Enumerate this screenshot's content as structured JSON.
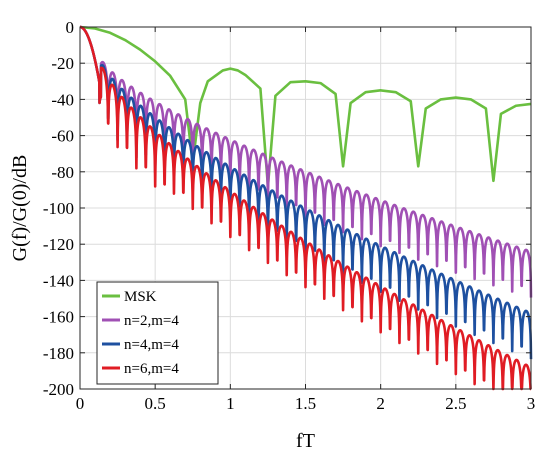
{
  "chart_data": {
    "type": "line",
    "title": "",
    "xlabel": "fT",
    "ylabel": "G(f)/G(0)/dB",
    "xlim": [
      0,
      3
    ],
    "ylim": [
      -200,
      0
    ],
    "xticks": [
      0,
      0.5,
      1,
      1.5,
      2,
      2.5,
      3
    ],
    "xtick_labels": [
      "0",
      "0.5",
      "1",
      "1.5",
      "2",
      "2.5",
      "3"
    ],
    "yticks": [
      0,
      -20,
      -40,
      -60,
      -80,
      -100,
      -120,
      -140,
      -160,
      -180,
      -200
    ],
    "ytick_labels": [
      "0",
      "-20",
      "-40",
      "-60",
      "-80",
      "-100",
      "-120",
      "-140",
      "-160",
      "-180",
      "-200"
    ],
    "grid": true,
    "legend_position": "bottom-left",
    "series": [
      {
        "name": "MSK",
        "color": "#6abf40",
        "description": "main lobe to first null near fT=0.75, sidelobe peaks about -23 dB, nulls at 1.25, 1.75, 2.25, 2.75",
        "points": [
          [
            0,
            0
          ],
          [
            0.1,
            -0.8
          ],
          [
            0.2,
            -3.2
          ],
          [
            0.3,
            -7.2
          ],
          [
            0.4,
            -12.5
          ],
          [
            0.5,
            -19
          ],
          [
            0.6,
            -27
          ],
          [
            0.7,
            -40
          ],
          [
            0.75,
            -75
          ],
          [
            0.8,
            -42
          ],
          [
            0.85,
            -30
          ],
          [
            0.95,
            -24
          ],
          [
            1.0,
            -23
          ],
          [
            1.05,
            -24
          ],
          [
            1.1,
            -26.5
          ],
          [
            1.2,
            -34
          ],
          [
            1.25,
            -88
          ],
          [
            1.3,
            -38
          ],
          [
            1.4,
            -30.5
          ],
          [
            1.5,
            -30
          ],
          [
            1.6,
            -31
          ],
          [
            1.7,
            -37
          ],
          [
            1.75,
            -77
          ],
          [
            1.8,
            -42
          ],
          [
            1.9,
            -36
          ],
          [
            2.0,
            -35
          ],
          [
            2.1,
            -36
          ],
          [
            2.2,
            -41
          ],
          [
            2.25,
            -77
          ],
          [
            2.3,
            -45
          ],
          [
            2.4,
            -40
          ],
          [
            2.5,
            -39
          ],
          [
            2.6,
            -40
          ],
          [
            2.7,
            -45
          ],
          [
            2.75,
            -85
          ],
          [
            2.8,
            -48
          ],
          [
            2.9,
            -43.5
          ],
          [
            3.0,
            -42.5
          ]
        ]
      },
      {
        "name": "n=2,m=4",
        "color": "#a050b4",
        "description": "oscillating spectrum, sidelobe envelope about -20 dB at fT=0.2 to -124 dB at fT=3, nulls every 0.0625 in fT"
      },
      {
        "name": "n=4,m=4",
        "color": "#1e50a0",
        "description": "oscillating spectrum, sidelobe envelope about -18 dB at fT=0.2 to -158 dB at fT=3, nulls every 0.0625 in fT"
      },
      {
        "name": "n=6,m=4",
        "color": "#e01c24",
        "description": "oscillating spectrum, sidelobe envelope about -16 dB at fT=0.2 to -188 dB at fT=3, nulls every 0.0625 in fT"
      }
    ]
  }
}
